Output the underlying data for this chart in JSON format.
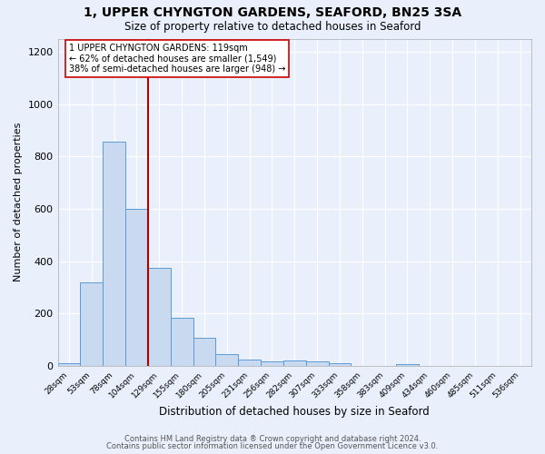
{
  "title_line1": "1, UPPER CHYNGTON GARDENS, SEAFORD, BN25 3SA",
  "title_line2": "Size of property relative to detached houses in Seaford",
  "xlabel": "Distribution of detached houses by size in Seaford",
  "ylabel": "Number of detached properties",
  "footer_line1": "Contains HM Land Registry data ® Crown copyright and database right 2024.",
  "footer_line2": "Contains public sector information licensed under the Open Government Licence v3.0.",
  "annotation_line1": "1 UPPER CHYNGTON GARDENS: 119sqm",
  "annotation_line2": "← 62% of detached houses are smaller (1,549)",
  "annotation_line3": "38% of semi-detached houses are larger (948) →",
  "bar_labels": [
    "28sqm",
    "53sqm",
    "78sqm",
    "104sqm",
    "129sqm",
    "155sqm",
    "180sqm",
    "205sqm",
    "231sqm",
    "256sqm",
    "282sqm",
    "307sqm",
    "333sqm",
    "358sqm",
    "383sqm",
    "409sqm",
    "434sqm",
    "460sqm",
    "485sqm",
    "511sqm",
    "536sqm"
  ],
  "bar_values": [
    12,
    320,
    855,
    600,
    375,
    183,
    107,
    46,
    25,
    17,
    22,
    18,
    10,
    0,
    0,
    8,
    0,
    0,
    0,
    0,
    0
  ],
  "bar_color": "#c9d9f0",
  "bar_edge_color": "#5b9bd5",
  "red_line_x": 3.5,
  "red_line_color": "#aa0000",
  "ylim": [
    0,
    1250
  ],
  "yticks": [
    0,
    200,
    400,
    600,
    800,
    1000,
    1200
  ],
  "background_color": "#eaf0fb",
  "grid_color": "#ffffff",
  "annotation_box_facecolor": "#ffffff",
  "annotation_box_edgecolor": "#cc0000"
}
